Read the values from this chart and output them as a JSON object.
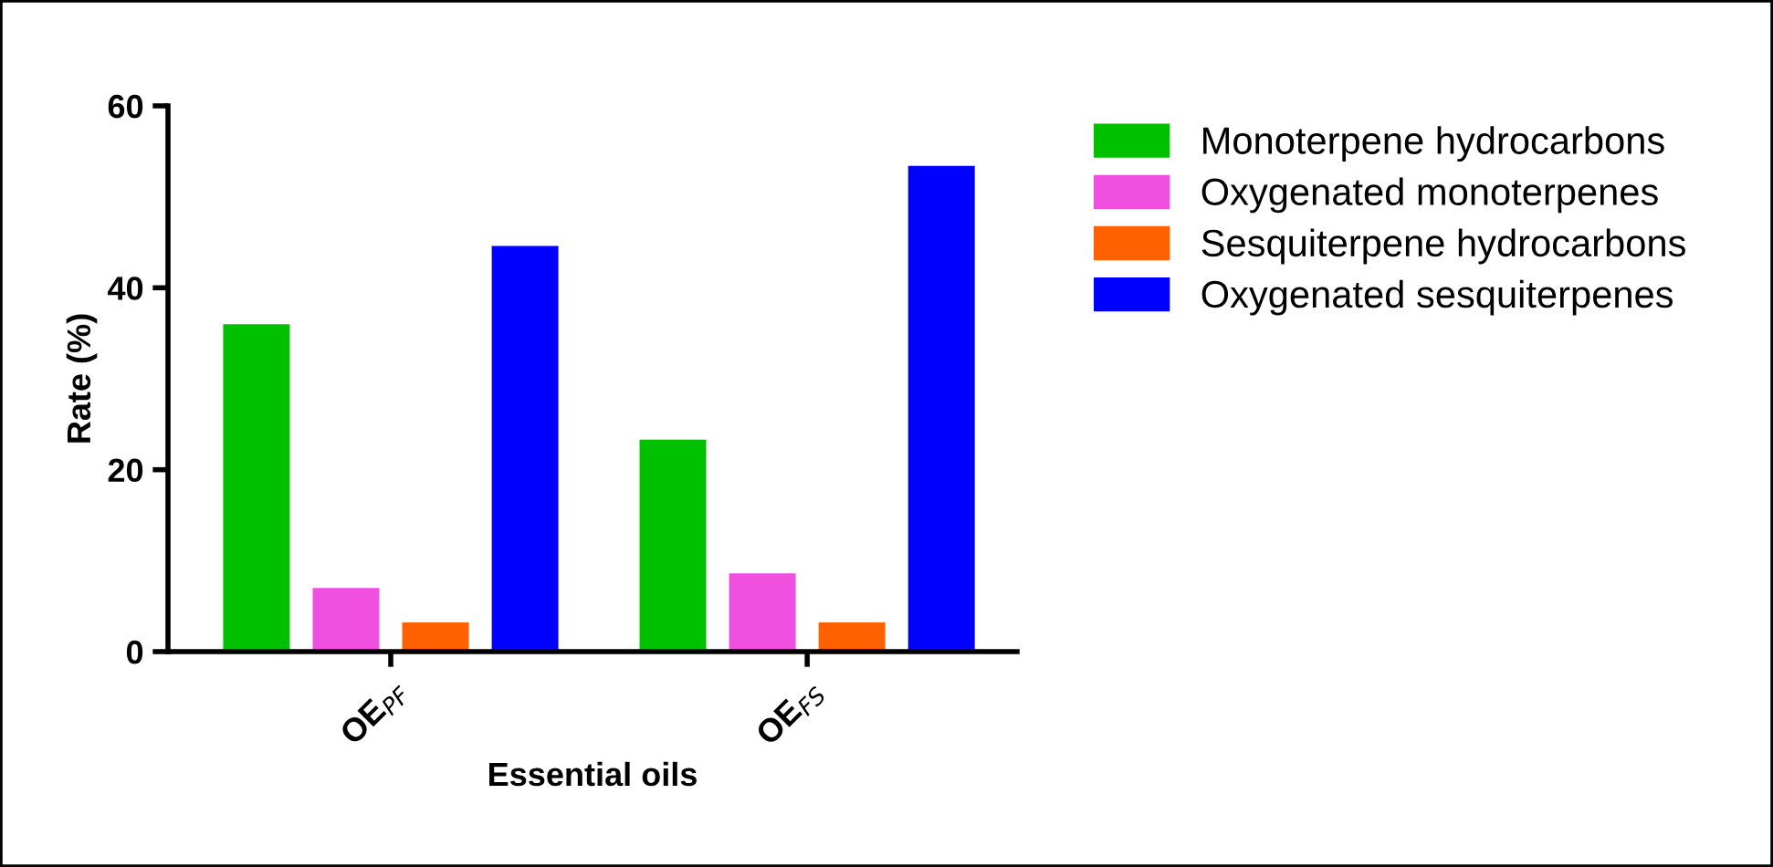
{
  "chart_data": {
    "type": "bar",
    "xlabel": "Essential oils",
    "ylabel": "Rate (%)",
    "categories": [
      "OE$_{PF}$",
      "OE$_{FS}$"
    ],
    "series": [
      {
        "name": "Monoterpene hydrocarbons",
        "color": "#00c000",
        "values": [
          36,
          23.3
        ]
      },
      {
        "name": "Oxygenated monoterpenes",
        "color": "#f050e0",
        "values": [
          7,
          8.6
        ]
      },
      {
        "name": "Sesquiterpene hydrocarbons",
        "color": "#ff6000",
        "values": [
          3.2,
          3.2
        ]
      },
      {
        "name": "Oxygenated sesquiterpenes",
        "color": "#0000ff",
        "values": [
          44.6,
          53.4
        ]
      }
    ],
    "ylim": [
      0,
      60
    ],
    "yticks": [
      0,
      20,
      40,
      60
    ],
    "grid": false,
    "legend": "top right"
  }
}
